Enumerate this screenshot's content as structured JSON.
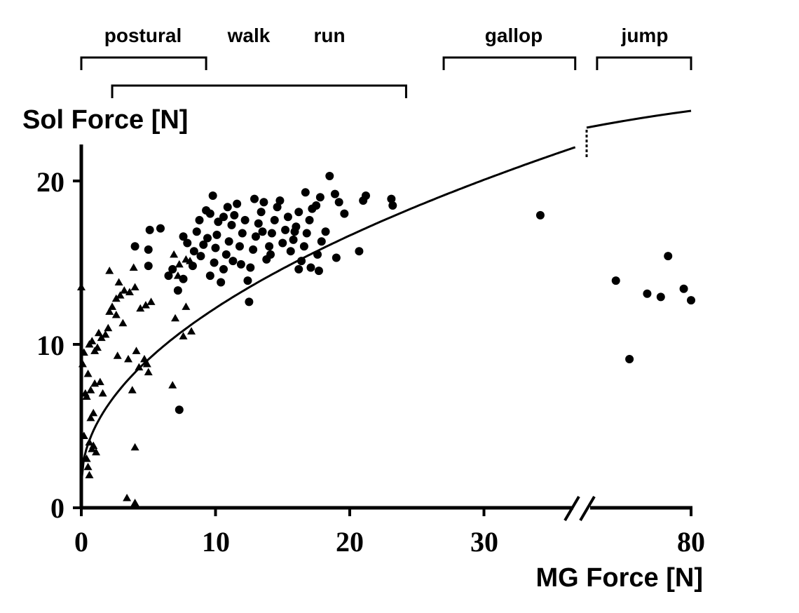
{
  "chart_data": {
    "type": "scatter",
    "title": "",
    "xlabel": "MG Force [N]",
    "ylabel": "Sol Force [N]",
    "x_ticks": [
      "0",
      "10",
      "20",
      "30",
      "80"
    ],
    "y_ticks": [
      "0",
      "10",
      "20"
    ],
    "ylim": [
      0,
      22
    ],
    "x_axis_break": {
      "from": 35,
      "to": 70
    },
    "gait_labels": [
      "postural",
      "walk",
      "run",
      "gallop",
      "jump"
    ],
    "gait_ranges": [
      {
        "label": "postural",
        "x_from": 0,
        "x_to": 9.3
      },
      {
        "label": "walk run",
        "x_from": 2.3,
        "x_to": 24.2
      },
      {
        "label": "gallop",
        "x_from": 27,
        "x_to": 36.8
      },
      {
        "label": "jump",
        "x_from": 71,
        "x_to": 80
      }
    ],
    "series": [
      {
        "marker": "triangle",
        "points": [
          [
            0,
            13.5
          ],
          [
            0.1,
            8.8
          ],
          [
            0.2,
            9.5
          ],
          [
            0.3,
            7
          ],
          [
            0.5,
            8.2
          ],
          [
            0.6,
            10
          ],
          [
            0.8,
            10.2
          ],
          [
            1,
            9.6
          ],
          [
            1.2,
            9.8
          ],
          [
            1.3,
            10.7
          ],
          [
            1.5,
            10.4
          ],
          [
            1.8,
            10.6
          ],
          [
            2,
            11
          ],
          [
            2.1,
            12
          ],
          [
            2.3,
            12.3
          ],
          [
            2.6,
            12.8
          ],
          [
            2.9,
            13
          ],
          [
            3.2,
            13.3
          ],
          [
            3.6,
            13.2
          ],
          [
            4,
            13.5
          ],
          [
            4.4,
            12.2
          ],
          [
            4.8,
            12.4
          ],
          [
            5.2,
            12.6
          ],
          [
            2.1,
            14.5
          ],
          [
            2.8,
            13.8
          ],
          [
            3.9,
            14.7
          ],
          [
            2.6,
            11.8
          ],
          [
            3.1,
            11.3
          ],
          [
            2.7,
            9.3
          ],
          [
            3.5,
            9.1
          ],
          [
            4.1,
            9.6
          ],
          [
            4.7,
            9.1
          ],
          [
            4.9,
            8.8
          ],
          [
            5,
            8.3
          ],
          [
            4.3,
            8.6
          ],
          [
            0.4,
            6.8
          ],
          [
            0.7,
            7.2
          ],
          [
            1,
            7.6
          ],
          [
            1.4,
            7.7
          ],
          [
            1.6,
            7
          ],
          [
            0.7,
            5.5
          ],
          [
            0.9,
            5.8
          ],
          [
            0.2,
            4.4
          ],
          [
            0.6,
            4
          ],
          [
            0.8,
            3.6
          ],
          [
            0.4,
            3
          ],
          [
            0.5,
            2.5
          ],
          [
            0.6,
            2
          ],
          [
            0.9,
            3.8
          ],
          [
            1.1,
            3.4
          ],
          [
            3.8,
            7.2
          ],
          [
            4,
            3.7
          ],
          [
            3.4,
            0.6
          ],
          [
            4,
            0.3
          ],
          [
            6.8,
            7.5
          ],
          [
            7.6,
            10.5
          ],
          [
            8.2,
            10.8
          ],
          [
            7,
            11.6
          ],
          [
            7.8,
            12.3
          ],
          [
            6.9,
            15.5
          ],
          [
            7.3,
            14.9
          ],
          [
            7.8,
            15.2
          ],
          [
            7.2,
            14.2
          ],
          [
            8.1,
            15.1
          ]
        ]
      },
      {
        "marker": "circle",
        "points": [
          [
            4,
            16
          ],
          [
            5,
            15.8
          ],
          [
            5,
            14.8
          ],
          [
            5.1,
            17
          ],
          [
            5.9,
            17.1
          ],
          [
            6.5,
            14.2
          ],
          [
            6.8,
            14.6
          ],
          [
            7.2,
            13.3
          ],
          [
            7.3,
            6
          ],
          [
            7.6,
            14
          ],
          [
            7.6,
            16.6
          ],
          [
            7.9,
            16.2
          ],
          [
            8.3,
            14.8
          ],
          [
            8.4,
            15.7
          ],
          [
            8.8,
            17.6
          ],
          [
            8.6,
            16.9
          ],
          [
            9.1,
            16.1
          ],
          [
            9.3,
            18.2
          ],
          [
            9.6,
            18
          ],
          [
            9.8,
            19.1
          ],
          [
            9.6,
            14.2
          ],
          [
            9.9,
            15
          ],
          [
            10,
            15.9
          ],
          [
            10.1,
            16.7
          ],
          [
            10.2,
            17.5
          ],
          [
            10.4,
            13.8
          ],
          [
            10.6,
            14.6
          ],
          [
            10.8,
            15.5
          ],
          [
            11,
            16.3
          ],
          [
            11.2,
            17.3
          ],
          [
            11.4,
            17.9
          ],
          [
            11.6,
            18.6
          ],
          [
            11.8,
            16
          ],
          [
            12,
            16.8
          ],
          [
            12.2,
            17.6
          ],
          [
            12.4,
            13.9
          ],
          [
            12.5,
            12.6
          ],
          [
            12.6,
            14.7
          ],
          [
            12.8,
            15.8
          ],
          [
            13,
            16.6
          ],
          [
            13.2,
            17.4
          ],
          [
            13.4,
            18.1
          ],
          [
            13.6,
            18.7
          ],
          [
            13.8,
            15.2
          ],
          [
            14,
            16
          ],
          [
            14.2,
            16.8
          ],
          [
            14.4,
            17.6
          ],
          [
            14.6,
            18.4
          ],
          [
            14.8,
            18.8
          ],
          [
            15,
            16.2
          ],
          [
            15.2,
            17
          ],
          [
            15.4,
            17.8
          ],
          [
            15.6,
            15.7
          ],
          [
            15.8,
            16.4
          ],
          [
            16,
            17.2
          ],
          [
            16.2,
            18.1
          ],
          [
            16.4,
            15.1
          ],
          [
            16.6,
            16
          ],
          [
            16.8,
            16.8
          ],
          [
            17,
            17.6
          ],
          [
            17.2,
            18.3
          ],
          [
            17.5,
            18.5
          ],
          [
            17.8,
            19
          ],
          [
            16.7,
            19.3
          ],
          [
            17.6,
            15.5
          ],
          [
            17.7,
            14.5
          ],
          [
            16.2,
            14.6
          ],
          [
            17.1,
            14.7
          ],
          [
            17.9,
            16.3
          ],
          [
            18.2,
            16.9
          ],
          [
            18.5,
            20.3
          ],
          [
            18.9,
            19.2
          ],
          [
            19.2,
            18.7
          ],
          [
            19.6,
            18
          ],
          [
            19,
            15.3
          ],
          [
            20.7,
            15.7
          ],
          [
            21,
            18.8
          ],
          [
            21.2,
            19.1
          ],
          [
            23.1,
            18.9
          ],
          [
            23.2,
            18.5
          ],
          [
            10.6,
            17.8
          ],
          [
            11.3,
            15.1
          ],
          [
            12.9,
            18.9
          ],
          [
            14.1,
            15.5
          ],
          [
            15.9,
            16.9
          ],
          [
            13.5,
            16.9
          ],
          [
            11.9,
            14.9
          ],
          [
            10.9,
            18.4
          ],
          [
            9.4,
            16.5
          ],
          [
            8.9,
            15.4
          ],
          [
            34.2,
            17.9
          ],
          [
            72.8,
            13.9
          ],
          [
            74.1,
            9.1
          ],
          [
            75.8,
            13.1
          ],
          [
            77.1,
            12.9
          ],
          [
            77.8,
            15.4
          ],
          [
            79.3,
            13.4
          ],
          [
            80,
            12.7
          ]
        ]
      }
    ],
    "fit_curve": "Sol = 3.55 * MG^0.5, with a step at the axis break"
  }
}
